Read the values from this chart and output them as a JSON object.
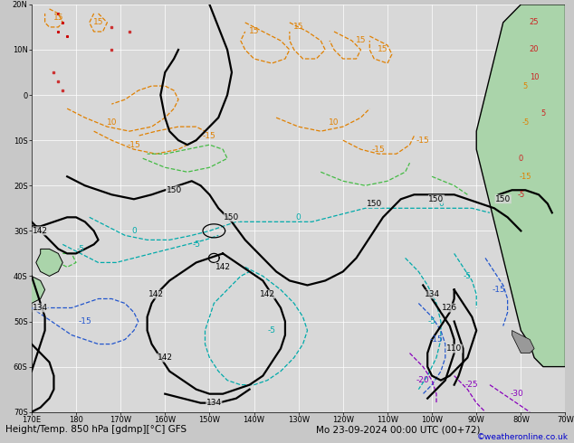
{
  "title_bottom": "Height/Temp. 850 hPa [gdmp][°C] GFS",
  "title_right": "Mo 23-09-2024 00:00 UTC (00+72)",
  "credit": "©weatheronline.co.uk",
  "fig_bg": "#c8c8c8",
  "map_bg": "#d8d8d8",
  "grid_color": "#ffffff",
  "fig_width": 6.34,
  "fig_height": 4.9,
  "dpi": 100,
  "lon_min": 170,
  "lon_max": 290,
  "lat_min": -70,
  "lat_max": 20,
  "land_color": "#aad4aa",
  "land_color2": "#88bb88",
  "pink_land": "#ffb0c8",
  "coast_color": "#000000",
  "geo_color": "#000000",
  "geo_lw": 1.6,
  "temp_orange": "#e08000",
  "temp_green": "#44bb44",
  "temp_cyan": "#00aaaa",
  "temp_blue": "#2255cc",
  "temp_purple": "#8800bb",
  "temp_red": "#cc0000",
  "lbl_size": 6.5,
  "title_size": 7.5,
  "credit_size": 6.5,
  "tick_size": 6.0
}
